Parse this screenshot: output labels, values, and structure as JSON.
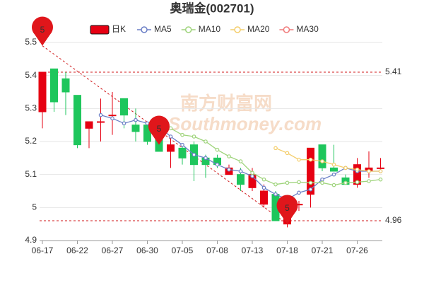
{
  "chart_data": {
    "type": "candlestick",
    "title": "奥瑞金(002701)",
    "watermark": [
      "南方财富网",
      "Southmoney.com"
    ],
    "x": [
      "06-17",
      null,
      null,
      "06-22",
      null,
      null,
      "06-27",
      null,
      null,
      "06-30",
      null,
      null,
      "07-05",
      null,
      null,
      "07-08",
      null,
      null,
      "07-13",
      null,
      null,
      "07-18",
      null,
      null,
      "07-21",
      null,
      null,
      "07-26",
      null,
      null
    ],
    "candles": {
      "name": "日K",
      "up_color": "#e60012",
      "down_color": "#1ec65c",
      "open": [
        5.29,
        5.42,
        5.39,
        5.34,
        5.24,
        5.26,
        5.28,
        5.33,
        5.25,
        5.25,
        5.21,
        5.17,
        5.18,
        5.19,
        5.15,
        5.15,
        5.1,
        5.1,
        5.06,
        5.01,
        5.04,
        4.95,
        5.01,
        5.04,
        5.19,
        5.12,
        5.09,
        5.07,
        5.11,
        5.12
      ],
      "close": [
        5.41,
        5.32,
        5.35,
        5.19,
        5.26,
        5.26,
        5.28,
        5.28,
        5.23,
        5.2,
        5.17,
        5.19,
        5.15,
        5.13,
        5.13,
        5.13,
        5.12,
        5.07,
        5.1,
        5.05,
        4.96,
        4.99,
        5.01,
        5.18,
        5.12,
        5.11,
        5.07,
        5.13,
        5.12,
        5.12
      ],
      "high": [
        5.41,
        5.42,
        5.41,
        5.34,
        5.26,
        5.33,
        5.35,
        5.33,
        5.3,
        5.25,
        5.23,
        5.21,
        5.19,
        5.2,
        5.16,
        5.16,
        5.13,
        5.12,
        5.12,
        5.07,
        5.05,
        5.01,
        5.02,
        5.18,
        5.19,
        5.19,
        5.1,
        5.15,
        5.17,
        5.15
      ],
      "low": [
        5.24,
        5.29,
        5.28,
        5.18,
        5.18,
        5.2,
        5.22,
        5.24,
        5.2,
        5.19,
        5.17,
        5.12,
        5.13,
        5.08,
        5.09,
        5.12,
        5.1,
        5.05,
        5.05,
        5.0,
        4.96,
        4.94,
        4.99,
        5.0,
        5.11,
        5.11,
        5.07,
        5.06,
        5.09,
        5.11
      ]
    },
    "series": [
      {
        "name": "MA5",
        "color": "#6b7fc6",
        "values": [
          null,
          null,
          null,
          null,
          null,
          5.28,
          5.27,
          5.255,
          5.265,
          5.255,
          5.245,
          5.215,
          5.19,
          5.16,
          5.15,
          5.13,
          5.115,
          5.11,
          5.095,
          5.06,
          5.04,
          5.025,
          5.045,
          5.055,
          5.085,
          5.1,
          5.12,
          5.11,
          5.11,
          5.11
        ]
      },
      {
        "name": "MA10",
        "color": "#9fd47c",
        "values": [
          null,
          null,
          null,
          null,
          null,
          null,
          null,
          null,
          null,
          null,
          5.25,
          5.24,
          5.22,
          5.215,
          5.2,
          5.175,
          5.155,
          5.14,
          5.105,
          5.085,
          5.07,
          5.075,
          5.077,
          5.075,
          5.075,
          5.068,
          5.075,
          5.077,
          5.08,
          5.085
        ]
      },
      {
        "name": "MA20",
        "color": "#f4cd6a",
        "values": [
          null,
          null,
          null,
          null,
          null,
          null,
          null,
          null,
          null,
          null,
          null,
          null,
          null,
          null,
          null,
          null,
          null,
          null,
          null,
          null,
          5.18,
          5.165,
          5.145,
          5.145,
          5.14,
          5.13,
          5.12,
          5.115,
          5.11,
          5.11
        ]
      },
      {
        "name": "MA30",
        "color": "#f07b7b",
        "values": [
          null,
          null,
          null,
          null,
          null,
          null,
          null,
          null,
          null,
          null,
          null,
          null,
          null,
          null,
          null,
          null,
          null,
          null,
          null,
          null,
          null,
          null,
          null,
          null,
          null,
          null,
          null,
          null,
          null,
          null
        ]
      }
    ],
    "ylim": [
      4.9,
      5.5
    ],
    "yticks": [
      4.9,
      5,
      5.1,
      5.2,
      5.3,
      5.4,
      5.5
    ],
    "grid": true,
    "reference_lines": [
      5.41,
      4.96
    ],
    "markers": [
      {
        "label": "5",
        "candle": 0,
        "value": 5.49
      },
      {
        "label": "5",
        "candle": 10,
        "value": 5.19
      },
      {
        "label": "5",
        "candle": 21,
        "value": 4.95
      }
    ]
  }
}
